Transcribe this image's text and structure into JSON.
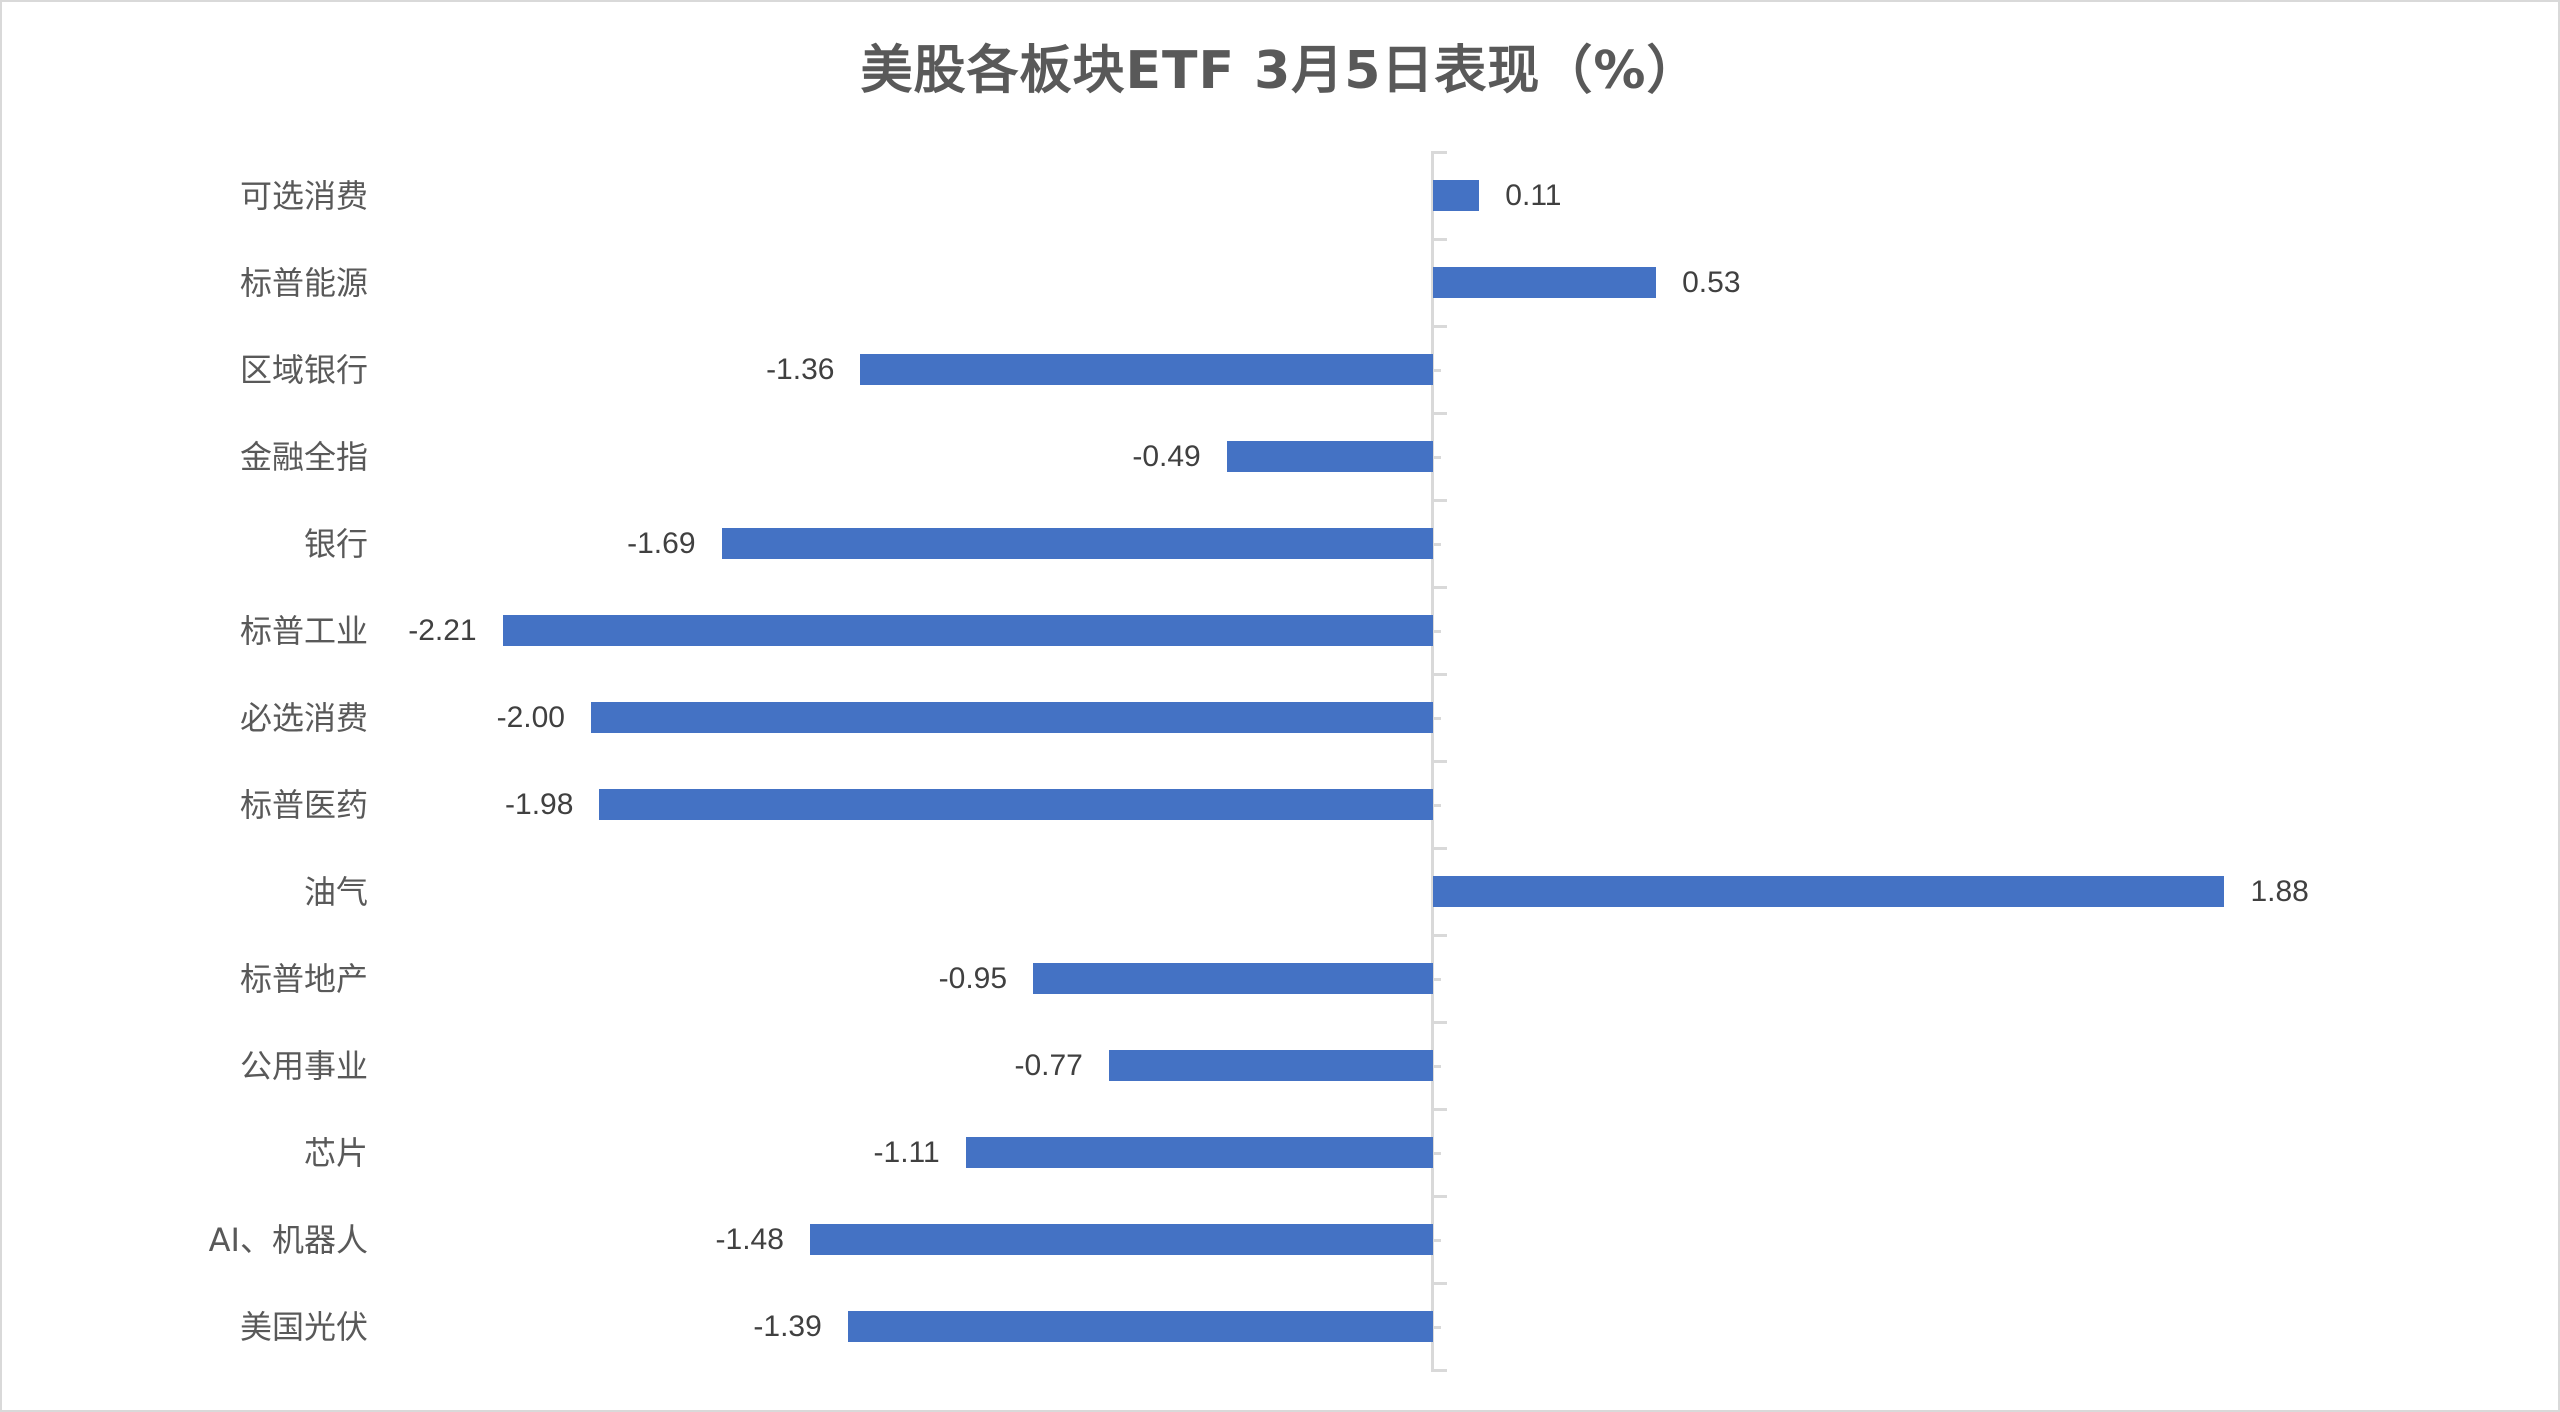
{
  "chart": {
    "title": "美股各板块ETF  3月5日表现（%）",
    "bar_color": "#4472C4",
    "axis_color": "#D9D9D9",
    "label_color": "#595959",
    "value_color": "#404040"
  },
  "chart_data": {
    "type": "bar",
    "orientation": "horizontal",
    "title": "美股各板块ETF  3月5日表现（%）",
    "xlabel": "",
    "ylabel": "",
    "categories": [
      "可选消费",
      "标普能源",
      "区域银行",
      "金融全指",
      "银行",
      "标普工业",
      "必选消费",
      "标普医药",
      "油气",
      "标普地产",
      "公用事业",
      "芯片",
      "AI、机器人",
      "美国光伏"
    ],
    "values": [
      0.11,
      0.53,
      -1.36,
      -0.49,
      -1.69,
      -2.21,
      -2.0,
      -1.98,
      1.88,
      -0.95,
      -0.77,
      -1.11,
      -1.48,
      -1.39
    ],
    "value_labels": [
      "0.11",
      "0.53",
      "-1.36",
      "-0.49",
      "-1.69",
      "-2.21",
      "-2.00",
      "-1.98",
      "1.88",
      "-0.95",
      "-0.77",
      "-1.11",
      "-1.48",
      "-1.39"
    ],
    "xlim": [
      -2.21,
      1.88
    ],
    "grid": false,
    "legend": null,
    "data_labels": true
  }
}
